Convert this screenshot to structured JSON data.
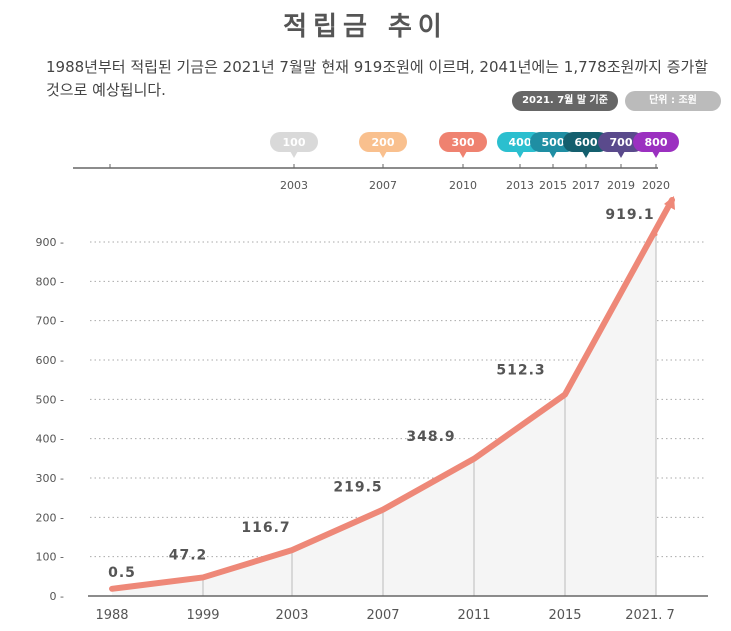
{
  "title": "적립금 추이",
  "description": "1988년부터 적립된 기금은 2021년 7월말 현재 919조원에 이르며, 2041년에는 1,778조원까지 증가할 것으로 예상됩니다.",
  "badges": {
    "basis": "2021. 7월 말 기준",
    "unit": "단위 : 조원"
  },
  "timeline": {
    "milestones": [
      {
        "value": "100",
        "year": "2003",
        "color": "#d9d9d9"
      },
      {
        "value": "200",
        "year": "2007",
        "color": "#f9c08e"
      },
      {
        "value": "300",
        "year": "2010",
        "color": "#ef8270"
      },
      {
        "value": "400",
        "year": "2013",
        "color": "#2bbfcf"
      },
      {
        "value": "500",
        "year": "2015",
        "color": "#1f8ea3"
      },
      {
        "value": "600",
        "year": "2017",
        "color": "#145f6e"
      },
      {
        "value": "700",
        "year": "2019",
        "color": "#5a4a8c"
      },
      {
        "value": "800",
        "year": "2020",
        "color": "#9b30c0"
      }
    ]
  },
  "chart_data": {
    "type": "area",
    "categories": [
      "1988",
      "1999",
      "2003",
      "2007",
      "2011",
      "2015",
      "2021. 7"
    ],
    "values": [
      0.5,
      47.2,
      116.7,
      219.5,
      348.9,
      512.3,
      919.1
    ],
    "labels": [
      "0.5",
      "47.2",
      "116.7",
      "219.5",
      "348.9",
      "512.3",
      "919.1"
    ],
    "ylim": [
      0,
      900
    ],
    "yticks": [
      0,
      100,
      200,
      300,
      400,
      500,
      600,
      700,
      800,
      900
    ],
    "grid": true,
    "line_color": "#ee8878",
    "fill_color": "#f5f5f5"
  }
}
